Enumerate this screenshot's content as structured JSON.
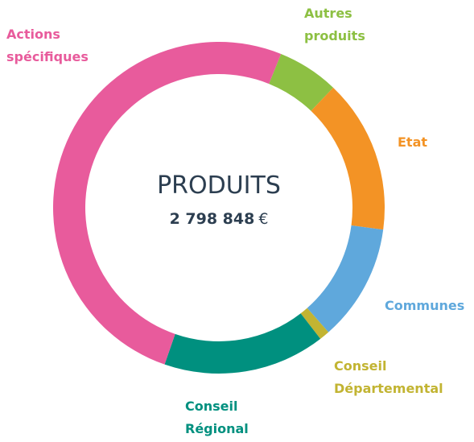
{
  "chart_data": {
    "type": "donut",
    "center_title": "PRODUITS",
    "total": "2 798 848",
    "currency": "€",
    "categories": [
      "Autres produits",
      "Etat",
      "Communes",
      "Conseil Départemental",
      "Conseil Régional",
      "Actions spécifiques"
    ],
    "values": [
      6,
      15,
      11.4,
      1,
      15.8,
      50.8
    ],
    "colors": [
      "#8dc043",
      "#f39325",
      "#5fa8dc",
      "#c2b432",
      "#00907f",
      "#e85b9c"
    ]
  }
}
